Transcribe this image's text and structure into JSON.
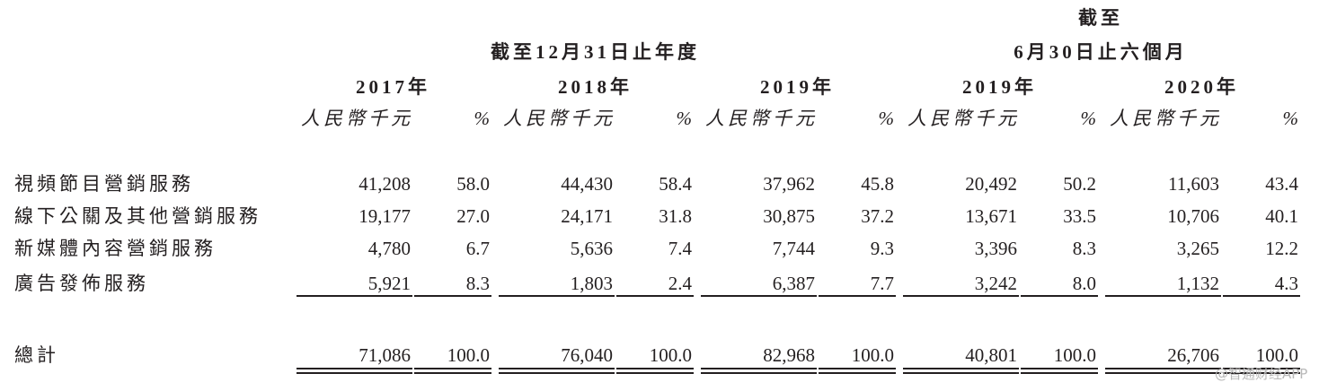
{
  "header": {
    "period_annual": "截至12月31日止年度",
    "period_interim_line1": "截至",
    "period_interim_line2": "6月30日止六個月",
    "columns": [
      {
        "year": "2017年",
        "amount_unit": "人民幣千元",
        "percent_unit": "%"
      },
      {
        "year": "2018年",
        "amount_unit": "人民幣千元",
        "percent_unit": "%"
      },
      {
        "year": "2019年",
        "amount_unit": "人民幣千元",
        "percent_unit": "%"
      },
      {
        "year": "2019年",
        "amount_unit": "人民幣千元",
        "percent_unit": "%"
      },
      {
        "year": "2020年",
        "amount_unit": "人民幣千元",
        "percent_unit": "%"
      }
    ]
  },
  "table": {
    "rows": [
      {
        "label": "視頻節目營銷服務",
        "cells": [
          "41,208",
          "58.0",
          "44,430",
          "58.4",
          "37,962",
          "45.8",
          "20,492",
          "50.2",
          "11,603",
          "43.4"
        ]
      },
      {
        "label": "線下公關及其他營銷服務",
        "cells": [
          "19,177",
          "27.0",
          "24,171",
          "31.8",
          "30,875",
          "37.2",
          "13,671",
          "33.5",
          "10,706",
          "40.1"
        ]
      },
      {
        "label": "新媒體內容營銷服務",
        "cells": [
          "4,780",
          "6.7",
          "5,636",
          "7.4",
          "7,744",
          "9.3",
          "3,396",
          "8.3",
          "3,265",
          "12.2"
        ]
      },
      {
        "label": "廣告發佈服務",
        "cells": [
          "5,921",
          "8.3",
          "1,803",
          "2.4",
          "6,387",
          "7.7",
          "3,242",
          "8.0",
          "1,132",
          "4.3"
        ]
      }
    ],
    "total": {
      "label": "總計",
      "cells": [
        "71,086",
        "100.0",
        "76,040",
        "100.0",
        "82,968",
        "100.0",
        "40,801",
        "100.0",
        "26,706",
        "100.0"
      ]
    }
  },
  "watermark": "@智通财经APP"
}
